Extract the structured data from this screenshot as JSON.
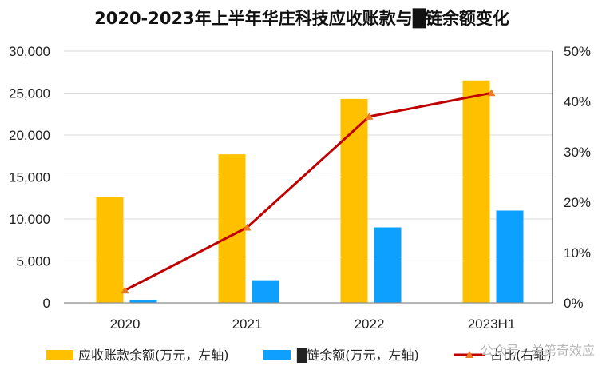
{
  "chart_data": {
    "type": "bar",
    "title": "2020-2023年上半年华庄科技应收账款与█链余额变化",
    "categories": [
      "2020",
      "2021",
      "2022",
      "2023H1"
    ],
    "series": [
      {
        "name": "应收账款余额(万元，左轴)",
        "type": "bar",
        "axis": "left",
        "color": "#FFC000",
        "values": [
          12600,
          17700,
          24300,
          26500
        ]
      },
      {
        "name": "█链余额(万元，左轴)",
        "type": "bar",
        "axis": "left",
        "color": "#0EA0FF",
        "values": [
          300,
          2700,
          9000,
          11000
        ]
      },
      {
        "name": "占比(右轴)",
        "type": "line",
        "axis": "right",
        "color": "#C00000",
        "marker_color": "#F07A22",
        "values": [
          2.5,
          15,
          37,
          41.7
        ]
      }
    ],
    "left_axis": {
      "ylim": [
        0,
        30000
      ],
      "ticks": [
        0,
        5000,
        10000,
        15000,
        20000,
        25000,
        30000
      ],
      "tick_labels": [
        "0",
        "5,000",
        "10,000",
        "15,000",
        "20,000",
        "25,000",
        "30,000"
      ]
    },
    "right_axis": {
      "ylim": [
        0,
        50
      ],
      "ticks": [
        0,
        10,
        20,
        30,
        40,
        50
      ],
      "tick_labels": [
        "0%",
        "10%",
        "20%",
        "30%",
        "40%",
        "50%"
      ]
    },
    "grid": true,
    "legend_position": "bottom",
    "watermark": "公众号 · 关第奇效应"
  }
}
